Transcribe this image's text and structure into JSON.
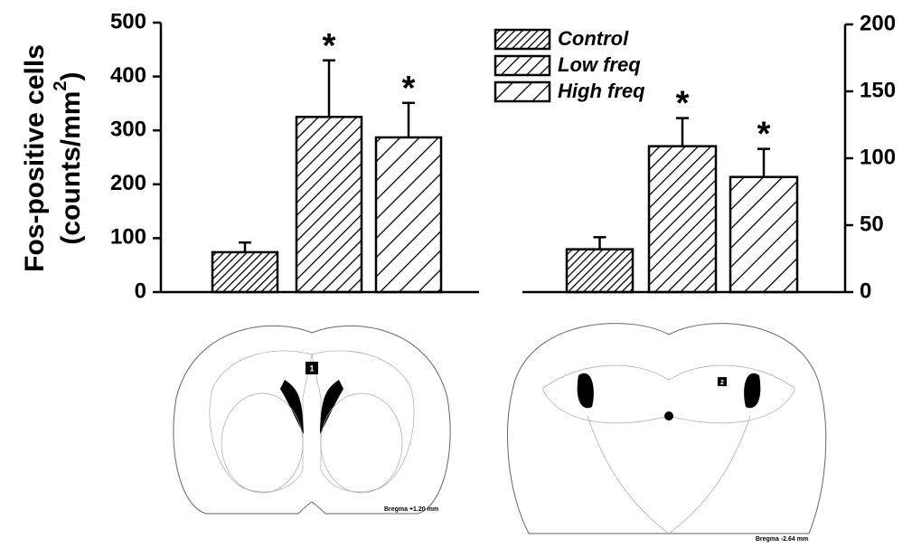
{
  "chart_data": [
    {
      "type": "bar",
      "ylabel": {
        "line1": "Fos-positive cells",
        "line2": "(counts/mm",
        "superscript": "2",
        "close": ")"
      },
      "yaxis_side": "left",
      "ylim": [
        0,
        500
      ],
      "yticks": [
        0,
        100,
        200,
        300,
        400,
        500
      ],
      "legend": "top-right",
      "series": [
        {
          "name": "Control",
          "values": [
            74
          ],
          "errors": [
            18
          ],
          "labels": [
            null
          ]
        },
        {
          "name": "Low freq",
          "values": [
            325
          ],
          "errors": [
            105
          ],
          "labels": [
            "*"
          ]
        },
        {
          "name": "High freq",
          "values": [
            287
          ],
          "errors": [
            64
          ],
          "labels": [
            "*"
          ]
        }
      ]
    },
    {
      "type": "bar",
      "yaxis_side": "right",
      "ylim": [
        0,
        200
      ],
      "yticks": [
        0,
        50,
        100,
        150,
        200
      ],
      "series": [
        {
          "values": [
            32
          ],
          "errors": [
            9
          ],
          "labels": [
            null
          ]
        },
        {
          "values": [
            109
          ],
          "errors": [
            21
          ],
          "labels": [
            "*"
          ]
        },
        {
          "values": [
            86
          ],
          "errors": [
            21
          ],
          "labels": [
            "*"
          ]
        }
      ]
    }
  ],
  "sections": [
    {
      "label": "1",
      "caption": "Bregma +1.20 mm"
    },
    {
      "label": "2",
      "caption": "Bregma -2.64 mm"
    }
  ]
}
